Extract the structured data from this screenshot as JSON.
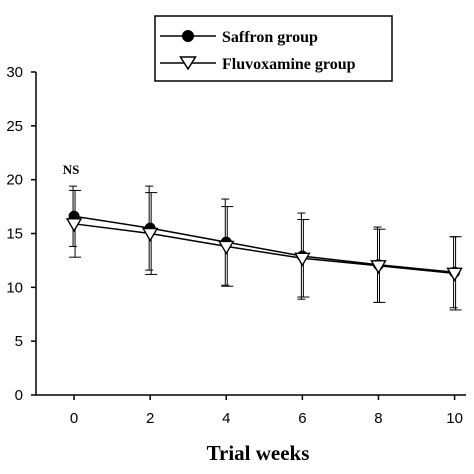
{
  "chart_data": {
    "type": "line",
    "title": "",
    "xlabel": "Trial weeks",
    "ylabel": "",
    "x": [
      0,
      2,
      4,
      6,
      8,
      10
    ],
    "xlim": [
      -1,
      10.3
    ],
    "ylim": [
      0,
      30
    ],
    "x_ticks": [
      "0",
      "2",
      "4",
      "6",
      "8",
      "10"
    ],
    "y_ticks": [
      "0",
      "5",
      "10",
      "15",
      "20",
      "25",
      "30"
    ],
    "grid": false,
    "legend_position": "top-right",
    "series": [
      {
        "name": "Saffron group",
        "marker": "filled-circle",
        "color": "#000000",
        "values": [
          16.6,
          15.5,
          14.2,
          12.9,
          12.1,
          11.4
        ],
        "error": [
          2.8,
          3.9,
          4.0,
          4.0,
          3.5,
          3.3
        ]
      },
      {
        "name": "Fluvoxamine group",
        "marker": "open-triangle-down",
        "color": "#000000",
        "values": [
          15.9,
          15.0,
          13.8,
          12.7,
          12.0,
          11.3
        ],
        "error": [
          3.1,
          3.8,
          3.7,
          3.6,
          3.4,
          3.4
        ]
      }
    ],
    "annotations": [
      {
        "text": "NS",
        "x": 0
      }
    ]
  }
}
